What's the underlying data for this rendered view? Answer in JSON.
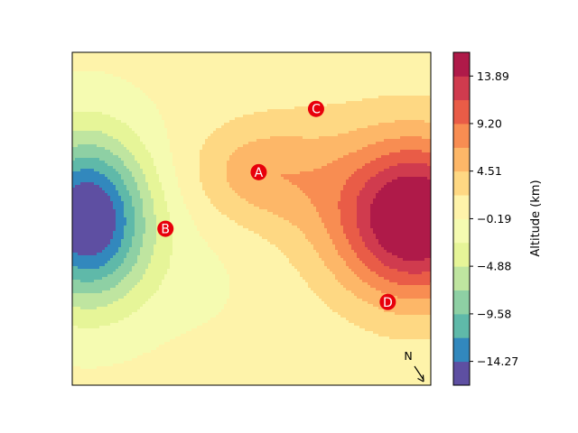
{
  "chart_data": {
    "type": "heatmap",
    "subtype": "filled-contour",
    "colormap": "Spectral_r",
    "colorbar": {
      "label": "Altitude (km)",
      "range": [
        -16.62,
        16.23
      ],
      "levels": [
        -16.62,
        -14.27,
        -11.92,
        -9.58,
        -7.23,
        -4.88,
        -2.53,
        -0.19,
        2.16,
        4.51,
        6.85,
        9.2,
        11.55,
        13.89,
        16.23
      ],
      "tick_values": [
        -14.27,
        -9.58,
        -4.88,
        -0.19,
        4.51,
        9.2,
        13.89
      ],
      "tick_labels": [
        "−14.27",
        "−9.58",
        "−4.88",
        "−0.19",
        "4.51",
        "9.20",
        "13.89"
      ],
      "colors": [
        "#5e4fa2",
        "#3288bd",
        "#5fb9a9",
        "#8ed0a4",
        "#bfe5a0",
        "#e6f598",
        "#f5fbb1",
        "#fef3aa",
        "#fed883",
        "#fdb768",
        "#f88d52",
        "#e95c47",
        "#d03b4e",
        "#af1a49"
      ]
    },
    "surface": {
      "features": [
        {
          "kind": "peak",
          "x": 0.96,
          "y": 0.5,
          "amplitude": 17.5,
          "sx": 0.15,
          "sy": 0.17
        },
        {
          "kind": "basin",
          "x": 0.04,
          "y": 0.5,
          "amplitude": -18.0,
          "sx": 0.12,
          "sy": 0.17
        },
        {
          "kind": "hill",
          "x": 0.52,
          "y": 0.36,
          "amplitude": 5.0,
          "sx": 0.13,
          "sy": 0.11
        },
        {
          "kind": "ridge",
          "x": 0.7,
          "y": 0.42,
          "amplitude": 2.2,
          "sx": 0.14,
          "sy": 0.19
        },
        {
          "kind": "dip",
          "x": 0.32,
          "y": 0.66,
          "amplitude": -1.0,
          "sx": 0.17,
          "sy": 0.14
        }
      ],
      "base": 0.4
    },
    "markers": [
      {
        "label": "A",
        "x": 0.52,
        "y": 0.36,
        "color": "#e8000b"
      },
      {
        "label": "B",
        "x": 0.26,
        "y": 0.53,
        "color": "#e8000b"
      },
      {
        "label": "C",
        "x": 0.68,
        "y": 0.17,
        "color": "#e8000b"
      },
      {
        "label": "D",
        "x": 0.88,
        "y": 0.75,
        "color": "#e8000b"
      }
    ],
    "north_arrow": {
      "label": "N",
      "direction": "south-east"
    },
    "xticks": [],
    "yticks": []
  }
}
